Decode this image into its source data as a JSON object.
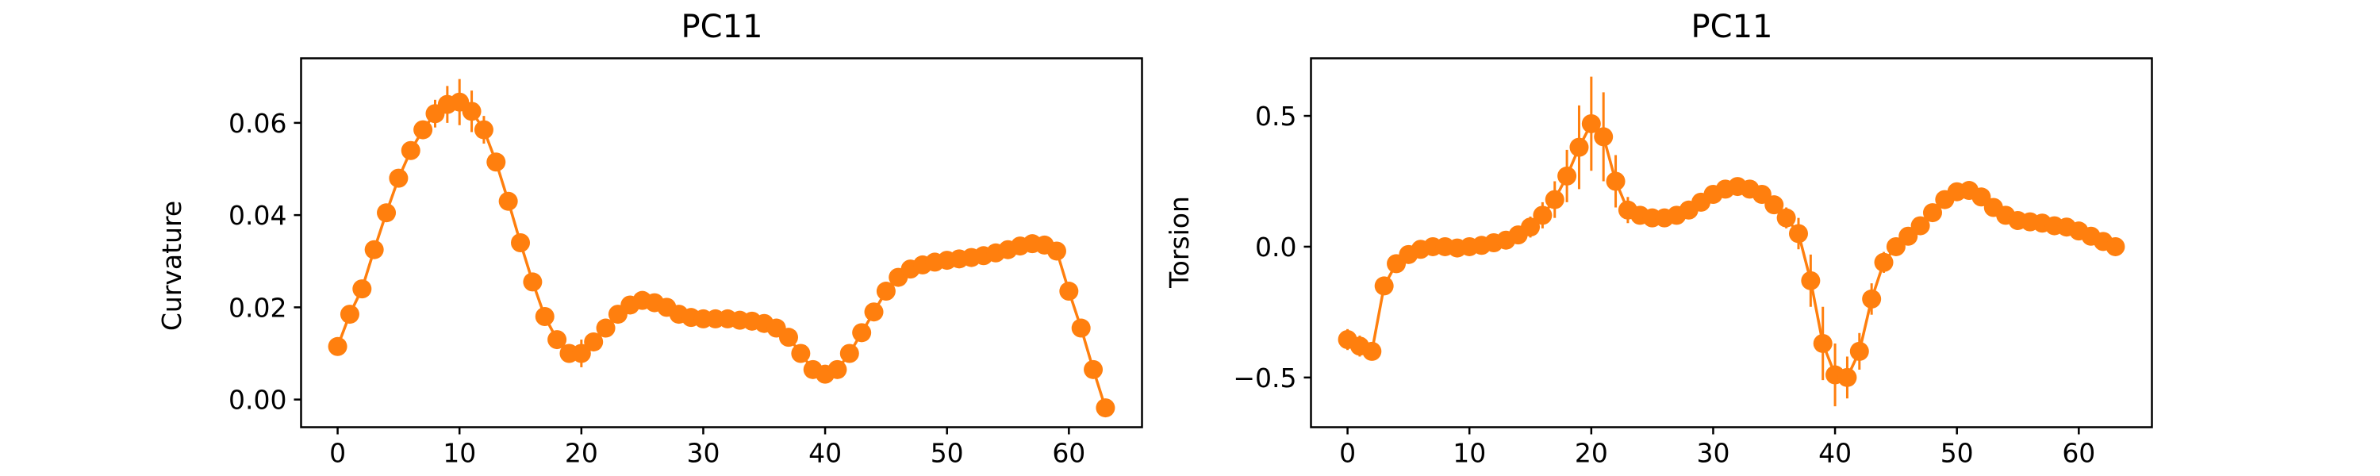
{
  "chart_data": [
    {
      "type": "line",
      "title": "PC11",
      "xlabel": "",
      "ylabel": "Curvature",
      "xlim": [
        -3,
        66
      ],
      "ylim": [
        -0.006,
        0.074
      ],
      "xticks": [
        0,
        10,
        20,
        30,
        40,
        50,
        60
      ],
      "yticks": [
        0.0,
        0.02,
        0.04,
        0.06
      ],
      "ytick_labels": [
        "0.00",
        "0.02",
        "0.04",
        "0.06"
      ],
      "color": "#ff7f0e",
      "grid": false,
      "series": [
        {
          "x": [
            0,
            1,
            2,
            3,
            4,
            5,
            6,
            7,
            8,
            9,
            10,
            11,
            12,
            13,
            14,
            15,
            16,
            17,
            18,
            19,
            20,
            21,
            22,
            23,
            24,
            25,
            26,
            27,
            28,
            29,
            30,
            31,
            32,
            33,
            34,
            35,
            36,
            37,
            38,
            39,
            40,
            41,
            42,
            43,
            44,
            45,
            46,
            47,
            48,
            49,
            50,
            51,
            52,
            53,
            54,
            55,
            56,
            57,
            58,
            59,
            60,
            61,
            62,
            63
          ],
          "y": [
            0.0115,
            0.0185,
            0.024,
            0.0325,
            0.0405,
            0.048,
            0.054,
            0.0585,
            0.062,
            0.064,
            0.0645,
            0.0625,
            0.0585,
            0.0515,
            0.043,
            0.034,
            0.0255,
            0.018,
            0.013,
            0.01,
            0.01,
            0.0125,
            0.0155,
            0.0185,
            0.0205,
            0.0215,
            0.021,
            0.02,
            0.0185,
            0.0178,
            0.0175,
            0.0175,
            0.0175,
            0.0172,
            0.017,
            0.0165,
            0.0155,
            0.0135,
            0.01,
            0.0065,
            0.0055,
            0.0065,
            0.01,
            0.0145,
            0.019,
            0.0235,
            0.0265,
            0.0283,
            0.0292,
            0.0298,
            0.0302,
            0.0305,
            0.0308,
            0.0312,
            0.0318,
            0.0325,
            0.0333,
            0.0338,
            0.0335,
            0.0322,
            0.0235,
            0.0155,
            0.0065,
            -0.0018
          ],
          "yerr": [
            0.001,
            0.001,
            0.001,
            0.001,
            0.001,
            0.001,
            0.0015,
            0.002,
            0.003,
            0.004,
            0.005,
            0.0045,
            0.003,
            0.002,
            0.0015,
            0.001,
            0.001,
            0.001,
            0.001,
            0.002,
            0.003,
            0.002,
            0.0015,
            0.001,
            0.001,
            0.001,
            0.001,
            0.001,
            0.001,
            0.0008,
            0.0008,
            0.0008,
            0.0008,
            0.0008,
            0.0008,
            0.0008,
            0.001,
            0.001,
            0.0015,
            0.0015,
            0.0015,
            0.0015,
            0.0015,
            0.001,
            0.001,
            0.001,
            0.001,
            0.0008,
            0.0008,
            0.0008,
            0.0008,
            0.0008,
            0.0008,
            0.0008,
            0.001,
            0.001,
            0.0012,
            0.0012,
            0.001,
            0.001,
            0.001,
            0.001,
            0.001,
            0.001
          ]
        }
      ]
    },
    {
      "type": "line",
      "title": "PC11",
      "xlabel": "",
      "ylabel": "Torsion",
      "xlim": [
        -3,
        66
      ],
      "ylim": [
        -0.69,
        0.72
      ],
      "xticks": [
        0,
        10,
        20,
        30,
        40,
        50,
        60
      ],
      "yticks": [
        -0.5,
        0.0,
        0.5
      ],
      "ytick_labels": [
        "−0.5",
        "0.0",
        "0.5"
      ],
      "color": "#ff7f0e",
      "grid": false,
      "series": [
        {
          "x": [
            0,
            1,
            2,
            3,
            4,
            5,
            6,
            7,
            8,
            9,
            10,
            11,
            12,
            13,
            14,
            15,
            16,
            17,
            18,
            19,
            20,
            21,
            22,
            23,
            24,
            25,
            26,
            27,
            28,
            29,
            30,
            31,
            32,
            33,
            34,
            35,
            36,
            37,
            38,
            39,
            40,
            41,
            42,
            43,
            44,
            45,
            46,
            47,
            48,
            49,
            50,
            51,
            52,
            53,
            54,
            55,
            56,
            57,
            58,
            59,
            60,
            61,
            62,
            63
          ],
          "y": [
            -0.355,
            -0.38,
            -0.4,
            -0.15,
            -0.065,
            -0.03,
            -0.01,
            0.0,
            0.0,
            -0.005,
            0.0,
            0.005,
            0.015,
            0.025,
            0.045,
            0.075,
            0.12,
            0.18,
            0.27,
            0.38,
            0.47,
            0.42,
            0.25,
            0.14,
            0.12,
            0.11,
            0.11,
            0.12,
            0.14,
            0.17,
            0.2,
            0.22,
            0.23,
            0.22,
            0.2,
            0.16,
            0.11,
            0.05,
            -0.13,
            -0.37,
            -0.49,
            -0.5,
            -0.4,
            -0.2,
            -0.06,
            0.0,
            0.04,
            0.08,
            0.13,
            0.18,
            0.21,
            0.215,
            0.19,
            0.15,
            0.12,
            0.1,
            0.095,
            0.09,
            0.08,
            0.075,
            0.06,
            0.04,
            0.02,
            0.0
          ],
          "yerr": [
            0.04,
            0.04,
            0.03,
            0.03,
            0.02,
            0.015,
            0.01,
            0.01,
            0.01,
            0.01,
            0.01,
            0.01,
            0.015,
            0.02,
            0.03,
            0.04,
            0.05,
            0.07,
            0.1,
            0.16,
            0.18,
            0.17,
            0.1,
            0.05,
            0.03,
            0.02,
            0.02,
            0.02,
            0.02,
            0.02,
            0.02,
            0.02,
            0.02,
            0.02,
            0.03,
            0.03,
            0.04,
            0.06,
            0.1,
            0.14,
            0.12,
            0.08,
            0.07,
            0.06,
            0.04,
            0.03,
            0.02,
            0.02,
            0.02,
            0.02,
            0.02,
            0.02,
            0.02,
            0.02,
            0.02,
            0.02,
            0.02,
            0.02,
            0.02,
            0.02,
            0.02,
            0.02,
            0.02,
            0.02
          ]
        }
      ]
    }
  ]
}
